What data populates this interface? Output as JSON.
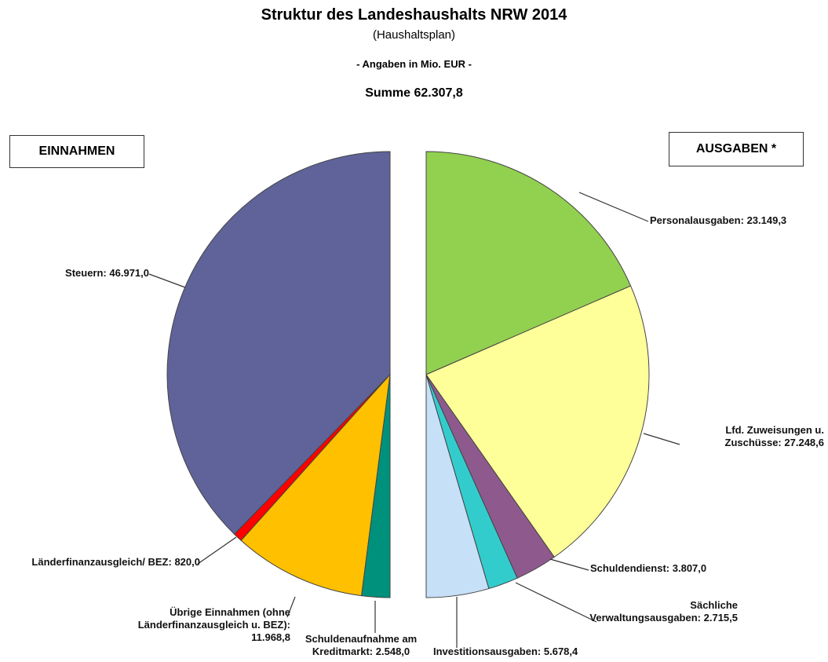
{
  "header": {
    "title": "Struktur des Landeshaushalts NRW 2014",
    "subtitle": "(Haushaltsplan)",
    "unit": "- Angaben in Mio. EUR -",
    "total": "Summe 62.307,8"
  },
  "chart_data": [
    {
      "type": "pie",
      "label": "EINNAHMEN",
      "direction": "counterclockwise",
      "categories": [
        "Steuern:",
        "Länderfinanzausgleich/ BEZ:",
        "Übrige Einnahmen (ohne Länderfinanzausgleich u. BEZ):",
        "Schuldenaufnahme am Kreditmarkt:"
      ],
      "values": [
        46971.0,
        820.0,
        11968.8,
        2548.0
      ],
      "value_labels": [
        "46.971,0",
        "820,0",
        "11.968,8",
        "2.548,0"
      ],
      "colors": [
        "#5f6399",
        "#ff0000",
        "#ffc000",
        "#00917c"
      ]
    },
    {
      "type": "pie",
      "label": "AUSGABEN *",
      "direction": "clockwise",
      "categories": [
        "Personalausgaben:",
        "Lfd. Zuweisungen u. Zuschüsse:",
        "Schuldendienst:",
        "Sächliche Verwaltungsausgaben:",
        "Investitionsausgaben:"
      ],
      "values": [
        23149.3,
        27248.6,
        3807.0,
        2715.5,
        5678.4
      ],
      "value_labels": [
        "23.149,3",
        "27.248,6",
        "3.807,0",
        "2.715,5",
        "5.678,4"
      ],
      "colors": [
        "#92d050",
        "#ffff99",
        "#8e5a8e",
        "#33cccc",
        "#c6e0f8"
      ]
    }
  ]
}
